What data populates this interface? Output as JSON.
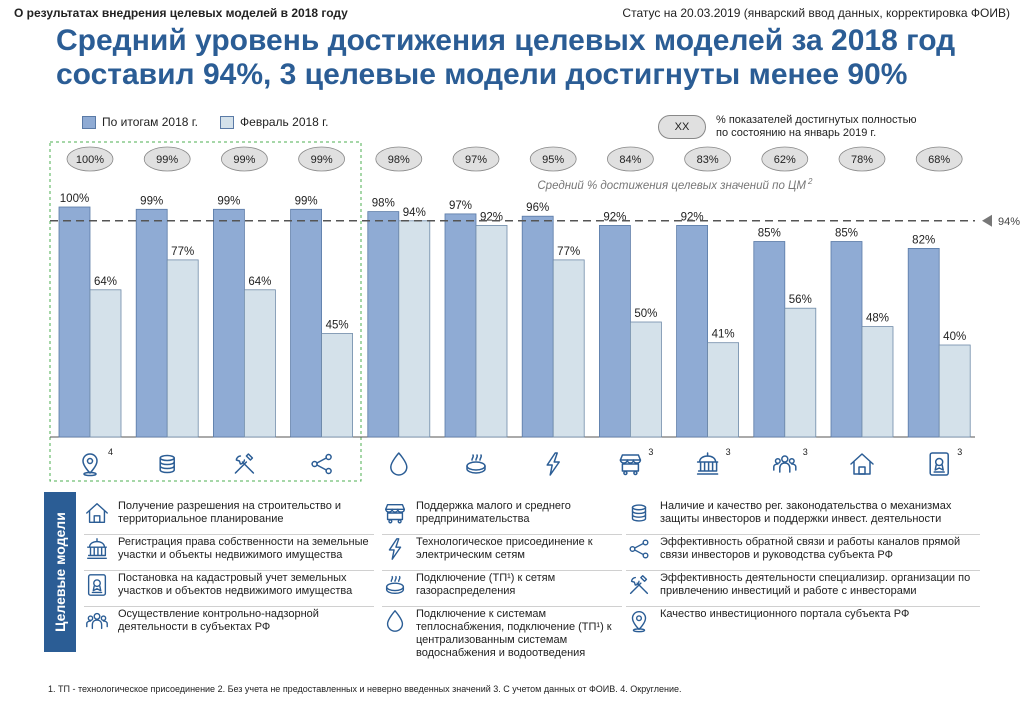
{
  "header": {
    "left": "О результатах внедрения целевых моделей в 2018 году",
    "right": "Статус на 20.03.2019 (январский ввод данных, корректировка ФОИВ)",
    "title_line1": "Средний уровень достижения целевых моделей за 2018 год",
    "title_line2": "составил 94%, 3 целевые модели достигнуты менее 90%"
  },
  "legend": {
    "series1": "По итогам 2018 г.",
    "series2": "Февраль 2018 г.",
    "pill": "XX",
    "pill_desc_1": "% показателей достигнутых полностью",
    "pill_desc_2": "по состоянию на январь 2019 г."
  },
  "colors": {
    "s1": "#8fabd4",
    "s2": "#d4e1ea",
    "pill": "#e0e0e0",
    "title": "#2b5d95",
    "dashed_box": "#4caf50"
  },
  "chart_data": {
    "type": "bar",
    "series": [
      {
        "name": "По итогам 2018 г.",
        "values": [
          100,
          99,
          99,
          99,
          98,
          97,
          96,
          92,
          92,
          85,
          85,
          82
        ]
      },
      {
        "name": "Февраль 2018 г.",
        "values": [
          64,
          77,
          64,
          45,
          94,
          92,
          77,
          50,
          41,
          56,
          48,
          40
        ]
      }
    ],
    "value_labels_s1": [
      "100%",
      "99%",
      "99%",
      "99%",
      "98%",
      "97%",
      "96%",
      "92%",
      "92%",
      "85%",
      "85%",
      "82%"
    ],
    "value_labels_s2": [
      "64%",
      "77%",
      "64%",
      "45%",
      "94%",
      "92%",
      "77%",
      "50%",
      "41%",
      "56%",
      "48%",
      "40%"
    ],
    "pills": [
      "100%",
      "99%",
      "99%",
      "99%",
      "98%",
      "97%",
      "95%",
      "84%",
      "83%",
      "62%",
      "78%",
      "68%"
    ],
    "icons": [
      "map-pin-icon",
      "coins-icon",
      "tools-icon",
      "share-icon",
      "water-drop-icon",
      "gas-burner-icon",
      "lightning-icon",
      "market-stall-icon",
      "government-building-icon",
      "people-icon",
      "house-icon",
      "certificate-icon"
    ],
    "icon_superscripts": [
      "4",
      "",
      "",
      "",
      "",
      "",
      "",
      "3",
      "3",
      "3",
      "",
      "3"
    ],
    "average": 94,
    "average_label": "94%",
    "average_caption": "Средний % достижения целевых значений по ЦМ",
    "average_caption_sup": "2",
    "ylim": [
      0,
      100
    ]
  },
  "models_panel": {
    "side_label": "Целевые модели",
    "items": [
      {
        "icon": "house-icon",
        "text": "Получение разрешения на строительство и территориальное планирование"
      },
      {
        "icon": "government-building-icon",
        "text": "Регистрация права собственности на земельные участки и объекты недвижимого имущества"
      },
      {
        "icon": "certificate-icon",
        "text": "Постановка на кадастровый учет земельных участков и объектов недвижимого имущества"
      },
      {
        "icon": "people-icon",
        "text": "Осуществление контрольно-надзорной деятельности в субъектах РФ"
      },
      {
        "icon": "market-stall-icon",
        "text": "Поддержка малого и среднего предпринимательства"
      },
      {
        "icon": "lightning-icon",
        "text": "Технологическое присоединение к электрическим сетям"
      },
      {
        "icon": "gas-burner-icon",
        "text": "Подключение (ТП¹) к сетям газораспределения"
      },
      {
        "icon": "water-drop-icon",
        "text": "Подключение к системам теплоснабжения, подключение (ТП¹) к централизованным системам водоснабжения и водоотведения"
      },
      {
        "icon": "coins-icon",
        "text": "Наличие и качество рег. законодательства о механизмах защиты инвесторов и поддержки инвест. деятельности"
      },
      {
        "icon": "share-icon",
        "text": "Эффективность обратной связи и работы каналов прямой связи инвесторов и руководства субъекта РФ"
      },
      {
        "icon": "tools-icon",
        "text": "Эффективность деятельности специализир. организации по привлечению инвестиций и работе с инвесторами"
      },
      {
        "icon": "map-pin-icon",
        "text": "Качество инвестиционного портала субъекта РФ"
      }
    ]
  },
  "footnote": "1. ТП - технологическое присоединение 2. Без учета не предоставленных и неверно введенных значений 3. С учетом данных от ФОИВ. 4. Округление."
}
